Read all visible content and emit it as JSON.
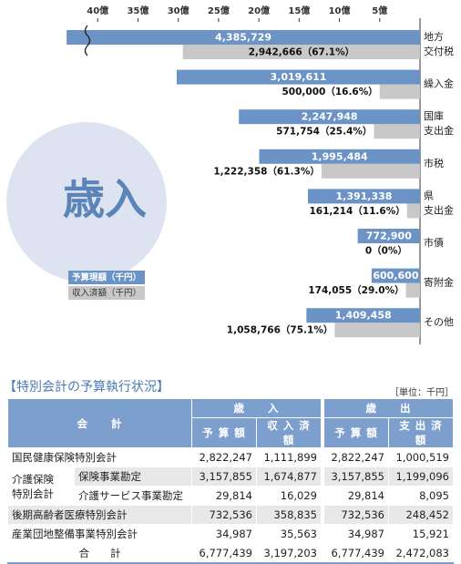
{
  "chart_data": {
    "type": "bar",
    "orientation": "horizontal",
    "x_reversed": true,
    "circle_label": "歳入",
    "categories": [
      [
        "地方",
        "交付税"
      ],
      [
        "繰入金"
      ],
      [
        "国庫",
        "支出金"
      ],
      [
        "市税"
      ],
      [
        "県",
        "支出金"
      ],
      [
        "市債"
      ],
      [
        "寄附金"
      ],
      [
        "その他"
      ]
    ],
    "series": [
      {
        "name": "予算現額（千円）",
        "color": "#6b93c6",
        "values": [
          4385729,
          3019611,
          2247948,
          1995484,
          1391338,
          772900,
          600600,
          1409458
        ],
        "value_labels": [
          "4,385,729",
          "3,019,611",
          "2,247,948",
          "1,995,484",
          "1,391,338",
          "772,900",
          "600,600",
          "1,409,458"
        ]
      },
      {
        "name": "収入済額（千円）",
        "color": "#c8c8c8",
        "values": [
          2942666,
          500000,
          571754,
          1222358,
          161214,
          0,
          174055,
          1058766
        ],
        "value_labels": [
          "2,942,666",
          "500,000",
          "571,754",
          "1,222,358",
          "161,214",
          "0",
          "174,055",
          "1,058,766"
        ],
        "rates": [
          67.1,
          16.6,
          25.4,
          61.3,
          11.6,
          0,
          29.0,
          75.1
        ],
        "rate_labels": [
          "（67.1%）",
          "（16.6%）",
          "（25.4%）",
          "（61.3%）",
          "（11.6%）",
          "（0%）",
          "（29.0%）",
          "（75.1%）"
        ]
      }
    ],
    "xlim": [
      0,
      4500000
    ],
    "xticks": [
      {
        "value": 4000000,
        "label": "40億"
      },
      {
        "value": 3500000,
        "label": "35億"
      },
      {
        "value": 3000000,
        "label": "30億"
      },
      {
        "value": 2500000,
        "label": "25億"
      },
      {
        "value": 2000000,
        "label": "20億"
      },
      {
        "value": 1500000,
        "label": "15億"
      },
      {
        "value": 1000000,
        "label": "10億"
      },
      {
        "value": 500000,
        "label": "5億"
      }
    ],
    "grid": false
  },
  "table": {
    "title": "【特別会計の予算執行状況】",
    "unit": "［単位：千円］",
    "header": {
      "account": "会　　計",
      "revenue": "歳　　入",
      "expenditure": "歳　　出",
      "columns": [
        "予 算 額",
        "収 入 済 額",
        "予 算 額",
        "支 出 済 額"
      ]
    },
    "rows": [
      {
        "label": "国民健康保険特別会計",
        "values": [
          "2,822,247",
          "1,111,899",
          "2,822,247",
          "1,000,519"
        ]
      },
      {
        "group": [
          "介護保険",
          "特別会計"
        ],
        "label": "保険事業勘定",
        "values": [
          "3,157,855",
          "1,674,877",
          "3,157,855",
          "1,199,096"
        ]
      },
      {
        "label": "介護サービス事業勘定",
        "values": [
          "29,814",
          "16,029",
          "29,814",
          "8,095"
        ]
      },
      {
        "label": "後期高齢者医療特別会計",
        "values": [
          "732,536",
          "358,835",
          "732,536",
          "248,452"
        ]
      },
      {
        "label": "産業団地整備事業特別会計",
        "values": [
          "34,987",
          "35,563",
          "34,987",
          "15,921"
        ]
      },
      {
        "label": "合　　計",
        "values": [
          "6,777,439",
          "3,197,203",
          "6,777,439",
          "2,472,083"
        ]
      }
    ]
  }
}
